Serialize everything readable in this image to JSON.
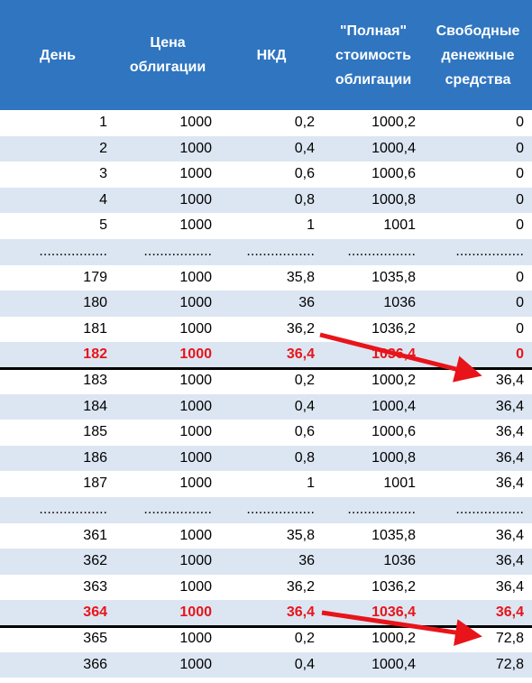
{
  "table": {
    "header": [
      [
        "День"
      ],
      [
        "Цена",
        "облигации"
      ],
      [
        "НКД"
      ],
      [
        "\"Полная\"",
        "стоимость",
        "облигации"
      ],
      [
        "Свободные",
        "денежные",
        "средства"
      ]
    ],
    "rows": [
      [
        "1",
        "1000",
        "0,2",
        "1000,2",
        "0"
      ],
      [
        "2",
        "1000",
        "0,4",
        "1000,4",
        "0"
      ],
      [
        "3",
        "1000",
        "0,6",
        "1000,6",
        "0"
      ],
      [
        "4",
        "1000",
        "0,8",
        "1000,8",
        "0"
      ],
      [
        "5",
        "1000",
        "1",
        "1001",
        "0"
      ],
      [
        ".................",
        ".................",
        ".................",
        ".................",
        "................."
      ],
      [
        "179",
        "1000",
        "35,8",
        "1035,8",
        "0"
      ],
      [
        "180",
        "1000",
        "36",
        "1036",
        "0"
      ],
      [
        "181",
        "1000",
        "36,2",
        "1036,2",
        "0"
      ],
      [
        "182",
        "1000",
        "36,4",
        "1036,4",
        "0"
      ],
      [
        "183",
        "1000",
        "0,2",
        "1000,2",
        "36,4"
      ],
      [
        "184",
        "1000",
        "0,4",
        "1000,4",
        "36,4"
      ],
      [
        "185",
        "1000",
        "0,6",
        "1000,6",
        "36,4"
      ],
      [
        "186",
        "1000",
        "0,8",
        "1000,8",
        "36,4"
      ],
      [
        "187",
        "1000",
        "1",
        "1001",
        "36,4"
      ],
      [
        ".................",
        ".................",
        ".................",
        ".................",
        "................."
      ],
      [
        "361",
        "1000",
        "35,8",
        "1035,8",
        "36,4"
      ],
      [
        "362",
        "1000",
        "36",
        "1036",
        "36,4"
      ],
      [
        "363",
        "1000",
        "36,2",
        "1036,2",
        "36,4"
      ],
      [
        "364",
        "1000",
        "36,4",
        "1036,4",
        "36,4"
      ],
      [
        "365",
        "1000",
        "0,2",
        "1000,2",
        "72,8"
      ],
      [
        "366",
        "1000",
        "0,4",
        "1000,4",
        "72,8"
      ]
    ]
  }
}
